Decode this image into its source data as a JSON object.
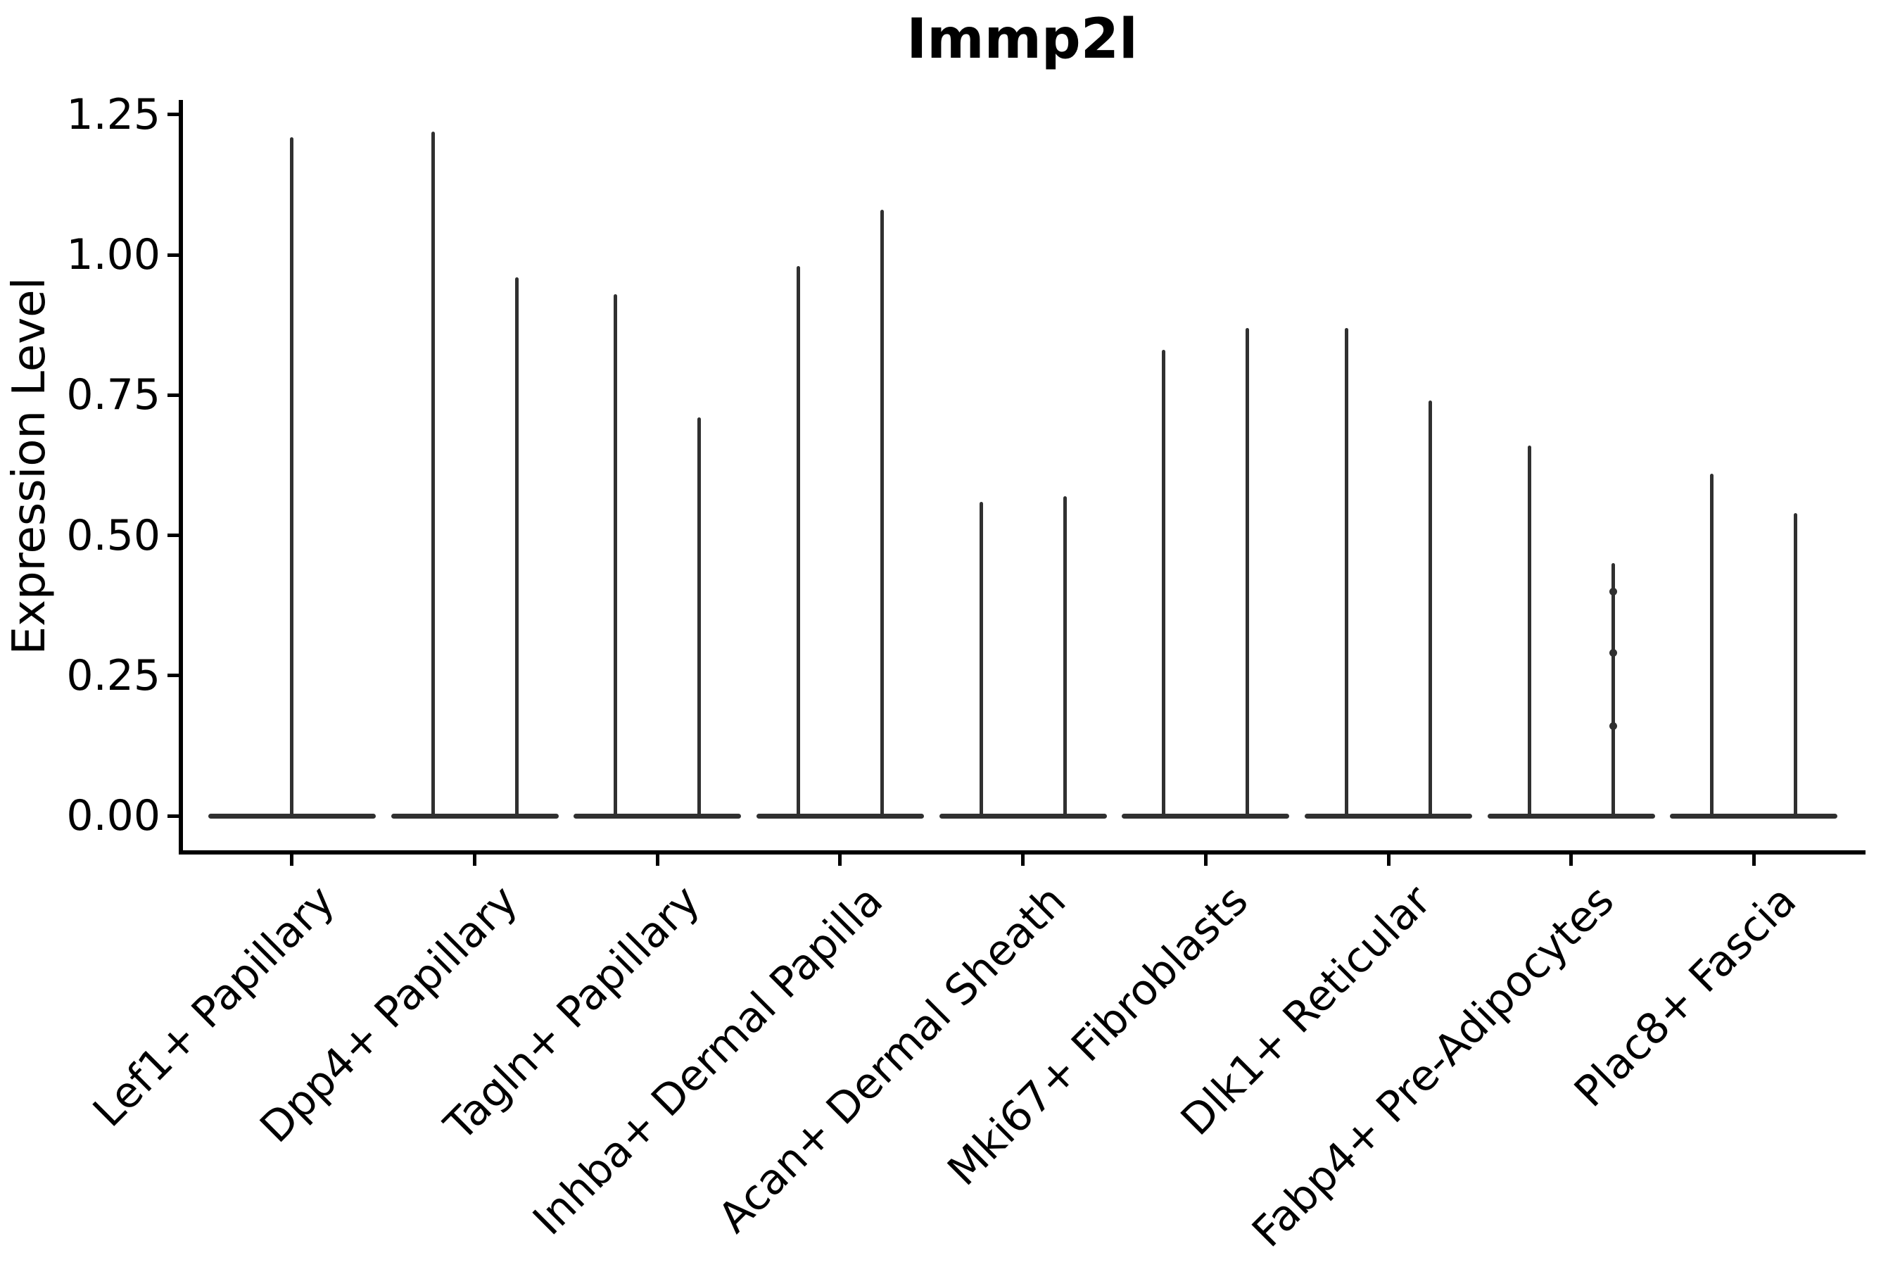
{
  "title": "Immp2l",
  "y_axis": {
    "label": "Expression Level",
    "tick_labels": [
      "0.00",
      "0.25",
      "0.50",
      "0.75",
      "1.00",
      "1.25"
    ]
  },
  "colors": {
    "violin": "#303030",
    "axis": "#000000",
    "background": "#ffffff"
  },
  "chart_data": {
    "type": "violin",
    "title": "Immp2l",
    "ylabel": "Expression Level",
    "ylim": [
      -0.06,
      1.28
    ],
    "yticks": [
      0,
      0.25,
      0.5,
      0.75,
      1.0,
      1.25
    ],
    "grid": false,
    "legend": null,
    "categories": [
      "Lef1+ Papillary",
      "Dpp4+ Papillary",
      "Tagln+ Papillary",
      "Inhba+ Dermal Papilla",
      "Acan+ Dermal Sheath",
      "Mki67+ Fibroblasts",
      "Dlk1+ Reticular",
      "Fabp4+ Pre-Adipocytes",
      "Plac8+ Fascia"
    ],
    "violins": [
      {
        "category": "Lef1+ Papillary",
        "spike_max": [
          1.21
        ]
      },
      {
        "category": "Dpp4+ Papillary",
        "spike_max": [
          1.22,
          0.96
        ]
      },
      {
        "category": "Tagln+ Papillary",
        "spike_max": [
          0.93,
          0.71
        ]
      },
      {
        "category": "Inhba+ Dermal Papilla",
        "spike_max": [
          0.98,
          1.08
        ]
      },
      {
        "category": "Acan+ Dermal Sheath",
        "spike_max": [
          0.56,
          0.57
        ]
      },
      {
        "category": "Mki67+ Fibroblasts",
        "spike_max": [
          0.83,
          0.87
        ]
      },
      {
        "category": "Dlk1+ Reticular",
        "spike_max": [
          0.87,
          0.74
        ]
      },
      {
        "category": "Fabp4+ Pre-Adipocytes",
        "spike_max": [
          0.66,
          0.45
        ],
        "density_bumps_violin2": [
          0.4,
          0.29,
          0.16
        ]
      },
      {
        "category": "Plac8+ Fascia",
        "spike_max": [
          0.61,
          0.54
        ]
      }
    ],
    "note": "Each violin is collapsed at expression 0 (flat base) with a thin spike up to its maximum value; first category has a single centered violin, all others have two."
  }
}
